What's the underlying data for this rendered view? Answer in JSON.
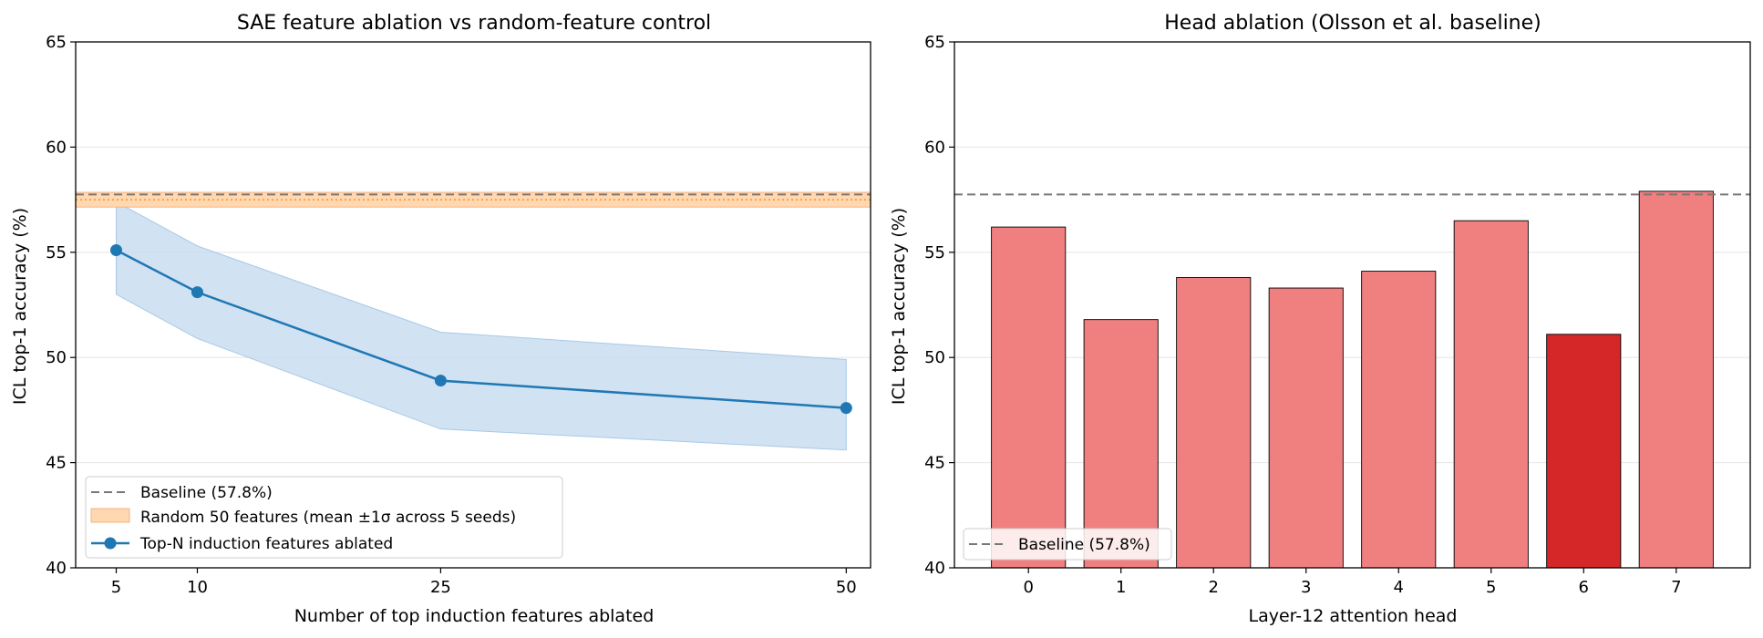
{
  "chart_data": [
    {
      "type": "line",
      "title": "SAE feature ablation vs random-feature control",
      "xlabel": "Number of top induction features ablated",
      "ylabel": "ICL top-1 accuracy (%)",
      "ylim": [
        40,
        65
      ],
      "yticks": [
        40,
        45,
        50,
        55,
        60,
        65
      ],
      "xlim": [
        2.5,
        51.5
      ],
      "xticks": [
        5,
        10,
        25,
        50
      ],
      "grid": "horizontal",
      "baseline": {
        "label": "Baseline (57.8%)",
        "value": 57.75
      },
      "random_band": {
        "label": "Random 50 features (mean ±1σ across 5 seeds)",
        "mean": 57.5,
        "low": 57.15,
        "high": 57.85
      },
      "series": [
        {
          "name": "Top-N induction features ablated",
          "x": [
            5,
            10,
            25,
            50
          ],
          "y": [
            55.1,
            53.1,
            48.9,
            47.6
          ],
          "lower": [
            53.0,
            50.9,
            46.6,
            45.6
          ],
          "upper": [
            57.4,
            55.3,
            51.2,
            49.9
          ]
        }
      ],
      "legend_position": "lower-left",
      "colors": {
        "line": "#1f77b4",
        "band": "#c6dbef",
        "random_fill": "#ffd8b0",
        "random_edge": "#f4b183",
        "random_mean": "#ff7f0e",
        "baseline": "#777777"
      }
    },
    {
      "type": "bar",
      "title": "Head ablation (Olsson et al. baseline)",
      "xlabel": "Layer-12 attention head",
      "ylabel": "ICL top-1 accuracy (%)",
      "ylim": [
        40,
        65
      ],
      "yticks": [
        40,
        45,
        50,
        55,
        60,
        65
      ],
      "categories": [
        "0",
        "1",
        "2",
        "3",
        "4",
        "5",
        "6",
        "7"
      ],
      "values": [
        56.2,
        51.8,
        53.8,
        53.3,
        54.1,
        56.5,
        51.1,
        57.9
      ],
      "highlight_index": 6,
      "baseline": {
        "label": "Baseline (57.8%)",
        "value": 57.75
      },
      "grid": "horizontal",
      "legend_position": "lower-left",
      "colors": {
        "bar": "#f08080",
        "highlight": "#d62728",
        "baseline": "#777777"
      }
    }
  ]
}
